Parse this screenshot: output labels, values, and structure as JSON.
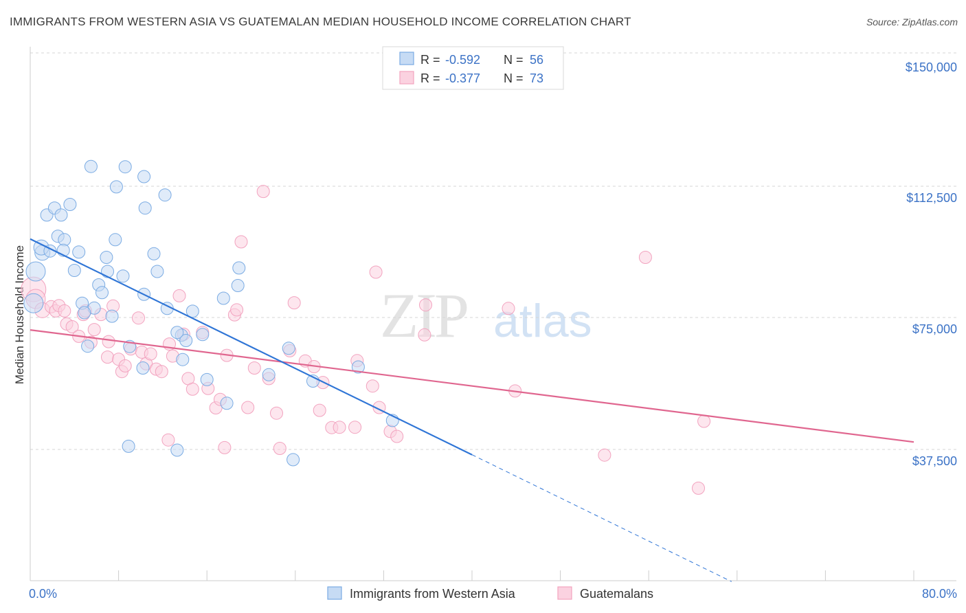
{
  "header": {
    "title": "IMMIGRANTS FROM WESTERN ASIA VS GUATEMALAN MEDIAN HOUSEHOLD INCOME CORRELATION CHART",
    "source": "Source: ZipAtlas.com"
  },
  "watermark": {
    "zip": "ZIP",
    "atlas": "atlas"
  },
  "colors": {
    "blue": "#7aabe3",
    "blue_line": "#2f75d6",
    "pink": "#f2a3bf",
    "pink_line": "#e0668f",
    "axis_text": "#3b72c6",
    "grid": "#d5d5d5"
  },
  "legend": {
    "items": [
      {
        "r_label": "R =",
        "r_value": "-0.592",
        "n_label": "N =",
        "n_value": "56"
      },
      {
        "r_label": "R =",
        "r_value": "-0.377",
        "n_label": "N =",
        "n_value": "73"
      }
    ]
  },
  "chart_data": {
    "type": "scatter",
    "title": "IMMIGRANTS FROM WESTERN ASIA VS GUATEMALAN MEDIAN HOUSEHOLD INCOME CORRELATION CHART",
    "xlabel": "",
    "ylabel": "Median Household Income",
    "xlim": [
      0,
      80
    ],
    "ylim": [
      0,
      155000
    ],
    "x_tick_labels": [
      "0.0%",
      "80.0%"
    ],
    "y_ticks": [
      37500,
      75000,
      112500,
      150000
    ],
    "y_tick_labels": [
      "$37,500",
      "$75,000",
      "$112,500",
      "$150,000"
    ],
    "grid": true,
    "legend_position": "top-center",
    "series": [
      {
        "name": "Immigrants from Western Asia",
        "color": "#7aabe3",
        "r": -0.592,
        "n": 56,
        "trend": {
          "x0": 0,
          "y0": 97200,
          "x1": 40,
          "y1": 36000,
          "dashed_to_x": 63.5,
          "dashed_to_y": 0
        },
        "points": [
          [
            0.3,
            79000,
            14
          ],
          [
            0.5,
            88000,
            14
          ],
          [
            1.1,
            93300,
            11
          ],
          [
            1.0,
            94800,
            11
          ],
          [
            1.8,
            93800,
            9
          ],
          [
            1.5,
            104000,
            9
          ],
          [
            2.2,
            106000,
            9
          ],
          [
            2.5,
            98000,
            9
          ],
          [
            2.8,
            104000,
            9
          ],
          [
            3.1,
            97000,
            9
          ],
          [
            3.6,
            107000,
            9
          ],
          [
            5.5,
            117800,
            9
          ],
          [
            8.6,
            117700,
            9
          ],
          [
            7.8,
            112000,
            9
          ],
          [
            10.3,
            114900,
            9
          ],
          [
            10.4,
            106000,
            9
          ],
          [
            12.2,
            109700,
            9
          ],
          [
            3.0,
            94000,
            9
          ],
          [
            4.4,
            93500,
            9
          ],
          [
            4.0,
            88300,
            9
          ],
          [
            6.9,
            92000,
            9
          ],
          [
            7.7,
            97000,
            9
          ],
          [
            7.0,
            88000,
            9
          ],
          [
            8.4,
            86700,
            9
          ],
          [
            11.2,
            93000,
            9
          ],
          [
            11.5,
            88000,
            9
          ],
          [
            6.2,
            84200,
            9
          ],
          [
            6.5,
            82000,
            9
          ],
          [
            10.3,
            81500,
            9
          ],
          [
            4.7,
            79000,
            9
          ],
          [
            5.8,
            77600,
            9
          ],
          [
            4.9,
            76300,
            9
          ],
          [
            7.4,
            75300,
            9
          ],
          [
            12.4,
            77500,
            9
          ],
          [
            14.7,
            76700,
            9
          ],
          [
            17.5,
            80400,
            9
          ],
          [
            18.9,
            89000,
            9
          ],
          [
            18.8,
            84000,
            9
          ],
          [
            5.2,
            66800,
            9
          ],
          [
            9.0,
            66700,
            9
          ],
          [
            10.2,
            60600,
            9
          ],
          [
            13.7,
            69900,
            9
          ],
          [
            14.1,
            68400,
            9
          ],
          [
            13.3,
            70700,
            9
          ],
          [
            15.6,
            70100,
            9
          ],
          [
            13.8,
            63000,
            9
          ],
          [
            16.0,
            57300,
            9
          ],
          [
            17.8,
            50600,
            9
          ],
          [
            21.6,
            58700,
            9
          ],
          [
            23.4,
            66200,
            9
          ],
          [
            25.6,
            56900,
            9
          ],
          [
            29.7,
            60900,
            9
          ],
          [
            32.8,
            45700,
            9
          ],
          [
            8.9,
            38400,
            9
          ],
          [
            13.3,
            37300,
            9
          ],
          [
            23.8,
            34600,
            9
          ]
        ]
      },
      {
        "name": "Guatemalans",
        "color": "#f2a3bf",
        "r": -0.377,
        "n": 73,
        "trend": {
          "x0": 0,
          "y0": 71400,
          "x1": 80,
          "y1": 39600
        },
        "points": [
          [
            0.3,
            82900,
            18
          ],
          [
            0.5,
            80200,
            14
          ],
          [
            1.1,
            77000,
            11
          ],
          [
            1.9,
            78000,
            9
          ],
          [
            2.3,
            76800,
            9
          ],
          [
            2.6,
            78300,
            9
          ],
          [
            3.1,
            76800,
            9
          ],
          [
            3.3,
            73100,
            9
          ],
          [
            3.8,
            72300,
            9
          ],
          [
            4.4,
            69600,
            9
          ],
          [
            4.8,
            75800,
            9
          ],
          [
            5.0,
            76800,
            9
          ],
          [
            5.5,
            67900,
            9
          ],
          [
            5.8,
            71500,
            9
          ],
          [
            6.4,
            75800,
            9
          ],
          [
            7.0,
            63700,
            9
          ],
          [
            7.1,
            68100,
            9
          ],
          [
            7.5,
            78200,
            9
          ],
          [
            8.0,
            63100,
            9
          ],
          [
            8.3,
            59600,
            9
          ],
          [
            8.6,
            61200,
            9
          ],
          [
            9.1,
            66000,
            9
          ],
          [
            9.8,
            74800,
            9
          ],
          [
            10.1,
            65100,
            9
          ],
          [
            10.5,
            61800,
            9
          ],
          [
            10.9,
            64600,
            9
          ],
          [
            11.4,
            60300,
            9
          ],
          [
            11.9,
            59600,
            9
          ],
          [
            12.6,
            67400,
            9
          ],
          [
            12.9,
            64000,
            9
          ],
          [
            13.5,
            81100,
            9
          ],
          [
            13.9,
            70200,
            9
          ],
          [
            14.3,
            57600,
            9
          ],
          [
            14.7,
            54600,
            9
          ],
          [
            15.6,
            70700,
            9
          ],
          [
            16.1,
            54800,
            9
          ],
          [
            16.8,
            49300,
            9
          ],
          [
            17.2,
            51700,
            9
          ],
          [
            17.6,
            38000,
            9
          ],
          [
            17.8,
            64200,
            9
          ],
          [
            18.5,
            75700,
            9
          ],
          [
            18.7,
            77100,
            9
          ],
          [
            19.1,
            96400,
            9
          ],
          [
            19.7,
            49400,
            9
          ],
          [
            20.3,
            60600,
            9
          ],
          [
            21.1,
            110700,
            9
          ],
          [
            21.6,
            57600,
            9
          ],
          [
            22.3,
            47800,
            9
          ],
          [
            22.6,
            37800,
            9
          ],
          [
            23.5,
            65500,
            9
          ],
          [
            23.9,
            79100,
            9
          ],
          [
            24.9,
            62600,
            9
          ],
          [
            25.7,
            61000,
            9
          ],
          [
            26.2,
            48600,
            9
          ],
          [
            26.5,
            56500,
            9
          ],
          [
            27.3,
            43700,
            9
          ],
          [
            28.0,
            43800,
            9
          ],
          [
            29.6,
            62700,
            9
          ],
          [
            29.4,
            43800,
            9
          ],
          [
            31.0,
            55500,
            9
          ],
          [
            31.6,
            49400,
            9
          ],
          [
            32.6,
            42600,
            9
          ],
          [
            33.2,
            41200,
            9
          ],
          [
            35.8,
            78500,
            9
          ],
          [
            35.7,
            70000,
            9
          ],
          [
            31.3,
            87800,
            9
          ],
          [
            43.3,
            77500,
            9
          ],
          [
            43.9,
            54100,
            9
          ],
          [
            12.5,
            40200,
            9
          ],
          [
            52.0,
            35900,
            9
          ],
          [
            55.7,
            92000,
            9
          ],
          [
            61.0,
            45500,
            9
          ],
          [
            60.5,
            26500,
            9
          ]
        ]
      }
    ]
  },
  "bottom_legend": {
    "items": [
      "Immigrants from Western Asia",
      "Guatemalans"
    ]
  }
}
